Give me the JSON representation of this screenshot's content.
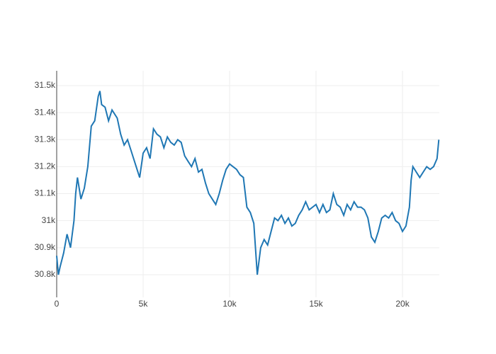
{
  "chart_data": {
    "type": "line",
    "x": [
      0,
      100,
      200,
      400,
      600,
      800,
      1000,
      1100,
      1200,
      1400,
      1600,
      1800,
      2000,
      2200,
      2400,
      2500,
      2600,
      2800,
      3000,
      3200,
      3500,
      3700,
      3900,
      4100,
      4300,
      4600,
      4800,
      5000,
      5200,
      5400,
      5600,
      5800,
      6000,
      6200,
      6400,
      6600,
      6800,
      7000,
      7200,
      7400,
      7600,
      7800,
      8000,
      8200,
      8400,
      8600,
      8800,
      9000,
      9200,
      9400,
      9600,
      9800,
      10000,
      10200,
      10400,
      10600,
      10800,
      11000,
      11200,
      11400,
      11600,
      11800,
      12000,
      12200,
      12400,
      12600,
      12800,
      13000,
      13200,
      13400,
      13600,
      13800,
      14000,
      14200,
      14400,
      14600,
      14800,
      15000,
      15200,
      15400,
      15600,
      15800,
      16000,
      16200,
      16400,
      16600,
      16800,
      17000,
      17200,
      17400,
      17600,
      17800,
      18000,
      18200,
      18400,
      18600,
      18800,
      19000,
      19200,
      19400,
      19600,
      19800,
      20000,
      20200,
      20400,
      20500,
      20600,
      20800,
      21000,
      21200,
      21400,
      21600,
      21800,
      22000,
      22100
    ],
    "series": [
      {
        "color": "#1f77b4",
        "values": [
          30870,
          30800,
          30830,
          30880,
          30950,
          30900,
          31000,
          31100,
          31160,
          31080,
          31120,
          31200,
          31350,
          31370,
          31460,
          31480,
          31430,
          31420,
          31370,
          31410,
          31380,
          31320,
          31280,
          31300,
          31260,
          31200,
          31160,
          31250,
          31270,
          31230,
          31340,
          31320,
          31310,
          31270,
          31310,
          31290,
          31280,
          31300,
          31290,
          31240,
          31220,
          31200,
          31230,
          31180,
          31190,
          31140,
          31100,
          31080,
          31060,
          31100,
          31150,
          31190,
          31210,
          31200,
          31190,
          31170,
          31160,
          31050,
          31030,
          30990,
          30800,
          30900,
          30930,
          30910,
          30960,
          31010,
          31000,
          31020,
          30990,
          31010,
          30980,
          30990,
          31020,
          31040,
          31070,
          31040,
          31050,
          31060,
          31030,
          31060,
          31030,
          31040,
          31100,
          31060,
          31050,
          31020,
          31060,
          31040,
          31070,
          31050,
          31050,
          31040,
          31010,
          30940,
          30920,
          30960,
          31010,
          31020,
          31010,
          31030,
          31000,
          30990,
          30960,
          30980,
          31050,
          31150,
          31200,
          31180,
          31160,
          31180,
          31200,
          31190,
          31200,
          31230,
          31300
        ]
      }
    ],
    "xlim": [
      0,
      22130
    ],
    "ylim": [
      30716,
      31555
    ],
    "xticks": [
      0,
      {
        "value": 5000,
        "label": "5k"
      },
      {
        "value": 10000,
        "label": "10k"
      },
      {
        "value": 15000,
        "label": "15k"
      },
      {
        "value": 20000,
        "label": "20k"
      }
    ],
    "yticks": [
      {
        "value": 30800,
        "label": "30.8k"
      },
      {
        "value": 30900,
        "label": "30.9k"
      },
      {
        "value": 31000,
        "label": "31k"
      },
      {
        "value": 31100,
        "label": "31.1k"
      },
      {
        "value": 31200,
        "label": "31.2k"
      },
      {
        "value": 31300,
        "label": "31.3k"
      },
      {
        "value": 31400,
        "label": "31.4k"
      },
      {
        "value": 31500,
        "label": "31.5k"
      }
    ],
    "grid": true
  }
}
